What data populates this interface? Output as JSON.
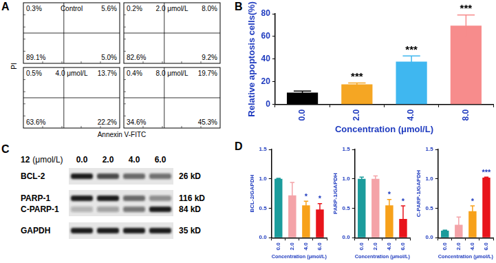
{
  "panel_labels": [
    "A",
    "B",
    "C",
    "D"
  ],
  "flow_cytometry": {
    "x_label": "Annexin V-FITC",
    "y_label": "PI",
    "plots": [
      {
        "title": "Control",
        "upper_left": "0.3%",
        "upper_right": "5.6%",
        "lower_left": "89.1%",
        "lower_right": "5.0%"
      },
      {
        "title": "2.0 μmol/L",
        "upper_left": "0.2%",
        "upper_right": "8.0%",
        "lower_left": "82.6%",
        "lower_right": "9.2%"
      },
      {
        "title": "4.0 μmol/L",
        "upper_left": "0.5%",
        "upper_right": "13.7%",
        "lower_left": "63.6%",
        "lower_right": "22.2%"
      },
      {
        "title": "8.0 μmol/L",
        "upper_left": "0.4%",
        "upper_right": "19.7%",
        "lower_left": "34.6%",
        "lower_right": "45.3%"
      }
    ]
  },
  "western_blot": {
    "treatment": "12",
    "unit": "(μmol/L)",
    "lanes": [
      "0.0",
      "2.0",
      "4.0",
      "6.0"
    ],
    "rows": [
      {
        "name": "BCL-2",
        "size": "26 kD"
      },
      {
        "name": "PARP-1",
        "size": "116 kD"
      },
      {
        "name": "C-PARP-1",
        "size": "84 kD"
      },
      {
        "name": "GAPDH",
        "size": "35 kD"
      }
    ]
  },
  "chart_data": [
    {
      "type": "bar",
      "categories": [
        "0.0",
        "2.0",
        "4.0",
        "8.0"
      ],
      "values": [
        10.5,
        17.8,
        37.8,
        69.5
      ],
      "errors": [
        1.3,
        1.2,
        5.0,
        9.5
      ],
      "colors": [
        "#000000",
        "#f5a623",
        "#3fb7f0",
        "#f78c8c"
      ],
      "xlabel": "Concentration (μmol/L)",
      "ylabel": "Relative apoptosis cells(%)",
      "ylim": [
        0,
        80
      ],
      "yticks": [
        0,
        20,
        40,
        60,
        80
      ],
      "grid": false,
      "annotations": [
        {
          "category": "2.0",
          "text": "***"
        },
        {
          "category": "4.0",
          "text": "***"
        },
        {
          "category": "8.0",
          "text": "***"
        }
      ]
    },
    {
      "type": "bar",
      "categories": [
        "0.0",
        "2.0",
        "4.0",
        "6.0"
      ],
      "values": [
        1.0,
        0.72,
        0.55,
        0.48
      ],
      "errors": [
        0.01,
        0.22,
        0.07,
        0.1
      ],
      "colors": [
        "#1b9c9c",
        "#f4a3a8",
        "#f7a11a",
        "#e8141b"
      ],
      "xlabel": "Concentration (μmol/L)",
      "ylabel": "BCL-2/GAPDH",
      "ylim": [
        0,
        1.5
      ],
      "yticks": [
        {
          "value": 0,
          "label": "0.0"
        },
        0.5,
        {
          "value": 1,
          "label": "1.0"
        },
        1.5
      ],
      "grid": false,
      "annotations": [
        {
          "category": "4.0",
          "text": "*"
        },
        {
          "category": "6.0",
          "text": "*"
        }
      ]
    },
    {
      "type": "bar",
      "categories": [
        "0.0",
        "2.0",
        "4.0",
        "6.0"
      ],
      "values": [
        1.0,
        1.0,
        0.55,
        0.32
      ],
      "errors": [
        0.03,
        0.05,
        0.1,
        0.22
      ],
      "colors": [
        "#1b9c9c",
        "#f4a3a8",
        "#f7a11a",
        "#e8141b"
      ],
      "xlabel": "Concentration (μmol/L)",
      "ylabel": "PARP-1/GAPDH",
      "ylim": [
        0,
        1.5
      ],
      "yticks": [
        {
          "value": 0,
          "label": "0.0"
        },
        0.5,
        {
          "value": 1,
          "label": "1.0"
        },
        1.5
      ],
      "grid": false,
      "annotations": [
        {
          "category": "4.0",
          "text": "*"
        },
        {
          "category": "6.0",
          "text": "*"
        }
      ]
    },
    {
      "type": "bar",
      "categories": [
        "0.0",
        "2.0",
        "4.0",
        "6.0"
      ],
      "values": [
        0.12,
        0.22,
        0.45,
        1.02
      ],
      "errors": [
        0.01,
        0.13,
        0.09,
        0.01
      ],
      "colors": [
        "#1b9c9c",
        "#f4a3a8",
        "#f7a11a",
        "#e8141b"
      ],
      "xlabel": "Concentration (μmol/L)",
      "ylabel": "C-PARP-1/GAPDH",
      "ylim": [
        0,
        1.5
      ],
      "yticks": [
        {
          "value": 0,
          "label": "0.0"
        },
        0.5,
        {
          "value": 1,
          "label": "1.0"
        },
        1.5
      ],
      "grid": false,
      "annotations": [
        {
          "category": "4.0",
          "text": "*"
        },
        {
          "category": "6.0",
          "text": "***"
        }
      ]
    }
  ]
}
